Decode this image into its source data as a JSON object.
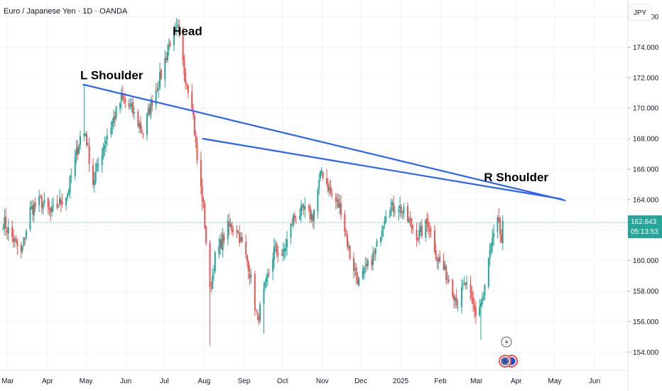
{
  "header": {
    "title": "Euro / Japanese Yen · 1D · OANDA",
    "currency": "JPY"
  },
  "colors": {
    "up": "#26a69a",
    "down": "#ef5350",
    "trendline": "#2962ff",
    "grid": "#f0f3fa",
    "price_badge": "#26a69a"
  },
  "icons": {
    "alert": "lightning-icon",
    "events": "globe-flag-icon"
  },
  "chart_data": {
    "type": "candlestick",
    "title": "Euro / Japanese Yen · 1D · OANDA",
    "ylabel": "JPY",
    "ylim": [
      152.8,
      177.1
    ],
    "yticks": [
      154,
      156,
      158,
      160,
      162,
      164,
      166,
      168,
      170,
      172,
      174,
      176
    ],
    "ytick_labels": [
      "154.000",
      "156.000",
      "158.000",
      "160.000",
      "162.000",
      "164.000",
      "166.000",
      "168.000",
      "170.000",
      "172.000",
      "174.000",
      "176.000"
    ],
    "xlim": [
      "2024-02-24",
      "2025-06-27"
    ],
    "x_ticks": [
      {
        "date": "2024-03-01",
        "label": "Mar"
      },
      {
        "date": "2024-04-01",
        "label": "Apr"
      },
      {
        "date": "2024-05-01",
        "label": "May"
      },
      {
        "date": "2024-06-01",
        "label": "Jun"
      },
      {
        "date": "2024-07-01",
        "label": "Jul"
      },
      {
        "date": "2024-08-01",
        "label": "Aug"
      },
      {
        "date": "2024-09-01",
        "label": "Sep"
      },
      {
        "date": "2024-10-01",
        "label": "Oct"
      },
      {
        "date": "2024-11-01",
        "label": "Nov"
      },
      {
        "date": "2024-12-01",
        "label": "Dec"
      },
      {
        "date": "2025-01-01",
        "label": "2025"
      },
      {
        "date": "2025-02-01",
        "label": "Feb"
      },
      {
        "date": "2025-03-01",
        "label": "Mar"
      },
      {
        "date": "2025-04-01",
        "label": "Apr"
      },
      {
        "date": "2025-05-01",
        "label": "May"
      },
      {
        "date": "2025-06-01",
        "label": "Jun"
      }
    ],
    "closes_anchor": [
      [
        "2024-02-26",
        162.6
      ],
      [
        "2024-03-06",
        161.2
      ],
      [
        "2024-03-11",
        160.4
      ],
      [
        "2024-03-18",
        163.3
      ],
      [
        "2024-03-26",
        163.9
      ],
      [
        "2024-04-03",
        163.1
      ],
      [
        "2024-04-16",
        164.4
      ],
      [
        "2024-04-26",
        168.1
      ],
      [
        "2024-04-30",
        168.4
      ],
      [
        "2024-05-06",
        165.1
      ],
      [
        "2024-05-15",
        167.8
      ],
      [
        "2024-05-28",
        170.6
      ],
      [
        "2024-06-05",
        169.9
      ],
      [
        "2024-06-14",
        168.4
      ],
      [
        "2024-06-20",
        170.3
      ],
      [
        "2024-06-28",
        172.2
      ],
      [
        "2024-07-05",
        174.4
      ],
      [
        "2024-07-11",
        175.1
      ],
      [
        "2024-07-16",
        172.4
      ],
      [
        "2024-07-22",
        170.4
      ],
      [
        "2024-07-26",
        166.6
      ],
      [
        "2024-07-31",
        163.5
      ],
      [
        "2024-08-05",
        157.9
      ],
      [
        "2024-08-09",
        160.2
      ],
      [
        "2024-08-19",
        162.2
      ],
      [
        "2024-08-26",
        162.1
      ],
      [
        "2024-09-04",
        159.7
      ],
      [
        "2024-09-11",
        156.1
      ],
      [
        "2024-09-18",
        158.5
      ],
      [
        "2024-09-24",
        160.7
      ],
      [
        "2024-10-01",
        160.4
      ],
      [
        "2024-10-09",
        162.8
      ],
      [
        "2024-10-17",
        163.3
      ],
      [
        "2024-10-24",
        162.9
      ],
      [
        "2024-10-31",
        165.9
      ],
      [
        "2024-11-08",
        164.2
      ],
      [
        "2024-11-15",
        163.4
      ],
      [
        "2024-11-22",
        160.3
      ],
      [
        "2024-11-29",
        158.6
      ],
      [
        "2024-12-04",
        159.3
      ],
      [
        "2024-12-12",
        160.6
      ],
      [
        "2024-12-20",
        163.3
      ],
      [
        "2024-12-30",
        163.6
      ],
      [
        "2025-01-08",
        162.4
      ],
      [
        "2025-01-14",
        161.6
      ],
      [
        "2025-01-22",
        162.5
      ],
      [
        "2025-01-29",
        160.2
      ],
      [
        "2025-02-07",
        158.8
      ],
      [
        "2025-02-14",
        157.2
      ],
      [
        "2025-02-20",
        158.5
      ],
      [
        "2025-02-28",
        156.5
      ],
      [
        "2025-03-06",
        157.6
      ],
      [
        "2025-03-11",
        160.6
      ],
      [
        "2025-03-18",
        162.7
      ],
      [
        "2025-03-20",
        160.8
      ],
      [
        "2025-03-21",
        162.643
      ]
    ],
    "extremes": {
      "head_high": {
        "date": "2024-07-11",
        "value": 175.4
      },
      "left_shoulder_high": {
        "date": "2024-04-29",
        "value": 171.6
      },
      "aug_low": {
        "date": "2024-08-05",
        "value": 154.4
      },
      "sep_low": {
        "date": "2024-09-16",
        "value": 155.2
      },
      "mar_low": {
        "date": "2025-03-04",
        "value": 154.8
      }
    },
    "last_price": 162.643,
    "last_price_label": "162.643",
    "countdown": "05:13:53",
    "trendlines": [
      {
        "name": "neckline-upper",
        "start": {
          "date": "2024-04-29",
          "value": 171.55
        },
        "end": {
          "date": "2025-05-09",
          "value": 163.95
        }
      },
      {
        "name": "neckline-lower",
        "start": {
          "date": "2024-07-31",
          "value": 168.0
        },
        "end": {
          "date": "2025-05-06",
          "value": 164.05
        }
      }
    ],
    "annotations": [
      {
        "text": "Head",
        "date": "2024-07-19",
        "value": 174.8
      },
      {
        "text": "L Shoulder",
        "date": "2024-05-21",
        "value": 171.9
      },
      {
        "text": "R Shoulder",
        "date": "2025-04-01",
        "value": 165.2
      }
    ]
  }
}
